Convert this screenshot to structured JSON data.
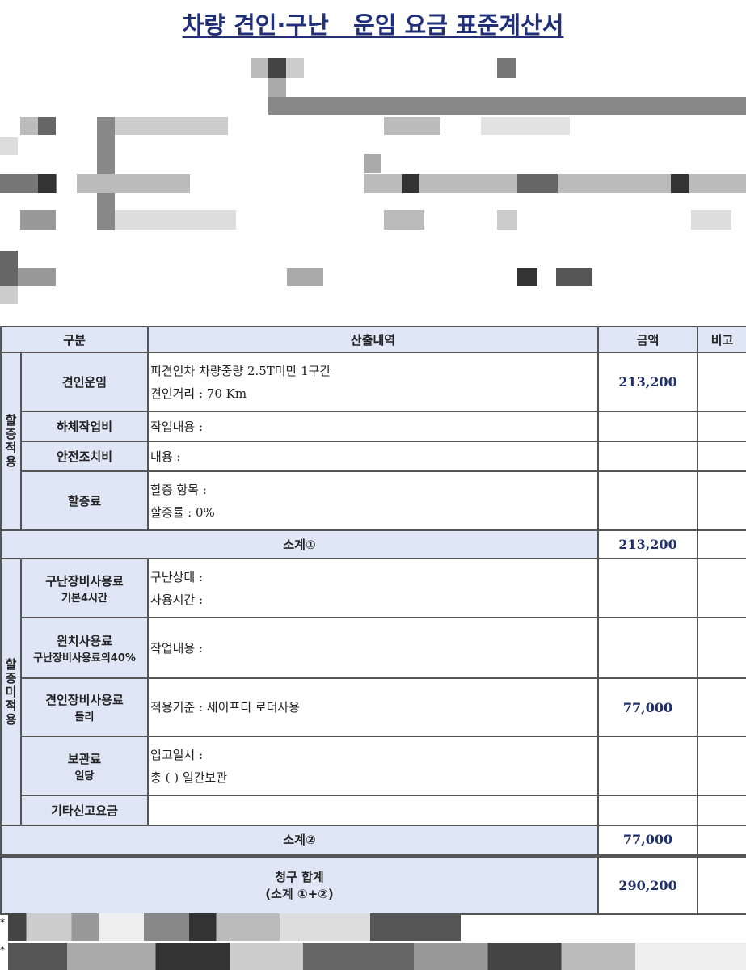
{
  "title": "차량 견인·구난   운임 요금 표준계산서",
  "table": {
    "headers": [
      "구분",
      "산출내역",
      "금액",
      "비고"
    ],
    "group1": {
      "label": "할증적용",
      "rows": [
        {
          "label": "견인운임",
          "sublabel": "",
          "lines": [
            "피견인차 차량중량 2.5T미만 1구간",
            "견인거리 : 70 Km"
          ],
          "amount": "213,200"
        },
        {
          "label": "하체작업비",
          "sublabel": "",
          "lines": [
            "작업내용 :"
          ],
          "amount": ""
        },
        {
          "label": "안전조치비",
          "sublabel": "",
          "lines": [
            "내용 :"
          ],
          "amount": ""
        },
        {
          "label": "할증료",
          "sublabel": "",
          "lines": [
            "할증 항목 :",
            "할증률 : 0%"
          ],
          "amount": ""
        }
      ],
      "subtotal_label": "소계①",
      "subtotal_amount": "213,200"
    },
    "group2": {
      "label": "할증미적용",
      "rows": [
        {
          "label": "구난장비사용료",
          "sublabel": "기본4시간",
          "lines": [
            "구난상태 :",
            "사용시간 :"
          ],
          "amount": ""
        },
        {
          "label": "윈치사용료",
          "sublabel": "구난장비사용료의40%",
          "lines": [
            "작업내용 :"
          ],
          "amount": ""
        },
        {
          "label": "견인장비사용료",
          "sublabel": "돌리",
          "lines": [
            "적용기준 : 세이프티 로더사용"
          ],
          "amount": "77,000"
        },
        {
          "label": "보관료",
          "sublabel": "일당",
          "lines": [
            "입고일시 :",
            "총 ( ) 일간보관"
          ],
          "amount": ""
        },
        {
          "label": "기타신고요금",
          "sublabel": "",
          "lines": [
            ""
          ],
          "amount": ""
        }
      ],
      "subtotal_label": "소계②",
      "subtotal_amount": "77,000"
    },
    "total_label": "청구 합계",
    "total_sublabel": "(소계 ①+②)",
    "total_amount": "290,200"
  },
  "footer_marks": [
    "*",
    "*"
  ]
}
